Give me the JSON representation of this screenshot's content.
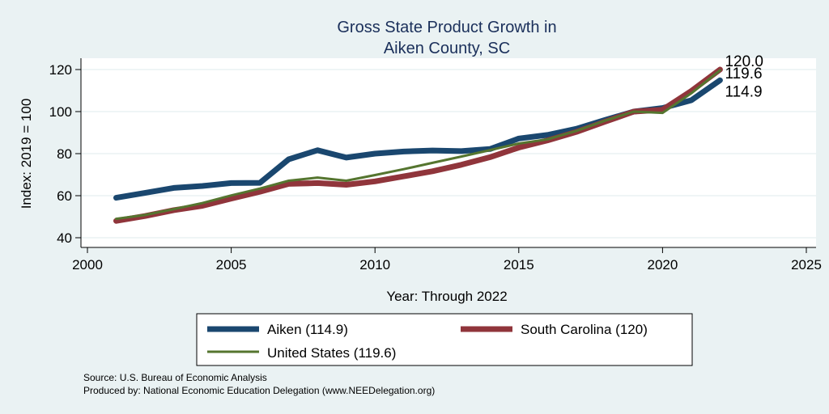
{
  "chart_data": {
    "type": "line",
    "title_lines": [
      "Gross State Product Growth in",
      "Aiken County, SC"
    ],
    "xlabel": "Year: Through 2022",
    "ylabel": "Index: 2019 = 100",
    "xlim": [
      2000,
      2025
    ],
    "ylim": [
      40,
      125
    ],
    "xticks": [
      2000,
      2005,
      2010,
      2015,
      2020,
      2025
    ],
    "yticks": [
      40,
      60,
      80,
      100,
      120
    ],
    "grid": true,
    "legend_position": "bottom",
    "x": [
      2001,
      2002,
      2003,
      2004,
      2005,
      2006,
      2007,
      2008,
      2009,
      2010,
      2011,
      2012,
      2013,
      2014,
      2015,
      2016,
      2017,
      2018,
      2019,
      2020,
      2021,
      2022
    ],
    "series": [
      {
        "name": "Aiken",
        "legend_label": "Aiken  (114.9)",
        "color": "#1a476f",
        "end_label": "114.9",
        "values": [
          59,
          61.3,
          63.7,
          64.6,
          66.0,
          66.1,
          77.3,
          81.6,
          78.1,
          80.0,
          81.0,
          81.5,
          81.2,
          82.2,
          87.2,
          88.9,
          91.8,
          96.0,
          100,
          101.7,
          105.4,
          114.9
        ]
      },
      {
        "name": "South Carolina",
        "legend_label": "South Carolina (120)",
        "color": "#90353b",
        "end_label": "120.0",
        "values": [
          48,
          50.3,
          53.1,
          55.2,
          58.6,
          61.9,
          65.6,
          66.0,
          65.2,
          66.8,
          69.2,
          71.6,
          74.7,
          78.3,
          82.9,
          86.3,
          90.3,
          95.2,
          100,
          100.9,
          109.8,
          120.0
        ]
      },
      {
        "name": "United States",
        "legend_label": "United States (119.6)",
        "color": "#55752f",
        "end_label": "119.6",
        "values": [
          49,
          50.8,
          53.6,
          56.5,
          60.1,
          63.4,
          67.1,
          68.6,
          67.1,
          69.8,
          72.6,
          75.6,
          78.6,
          81.7,
          84.8,
          86.8,
          90.8,
          95.7,
          100,
          99.4,
          108.7,
          119.6
        ]
      }
    ]
  },
  "notes": {
    "source": "Source: U.S. Bureau of Economic Analysis",
    "produced": "Produced by: National Economic Education Delegation (www.NEEDelegation.org)"
  }
}
